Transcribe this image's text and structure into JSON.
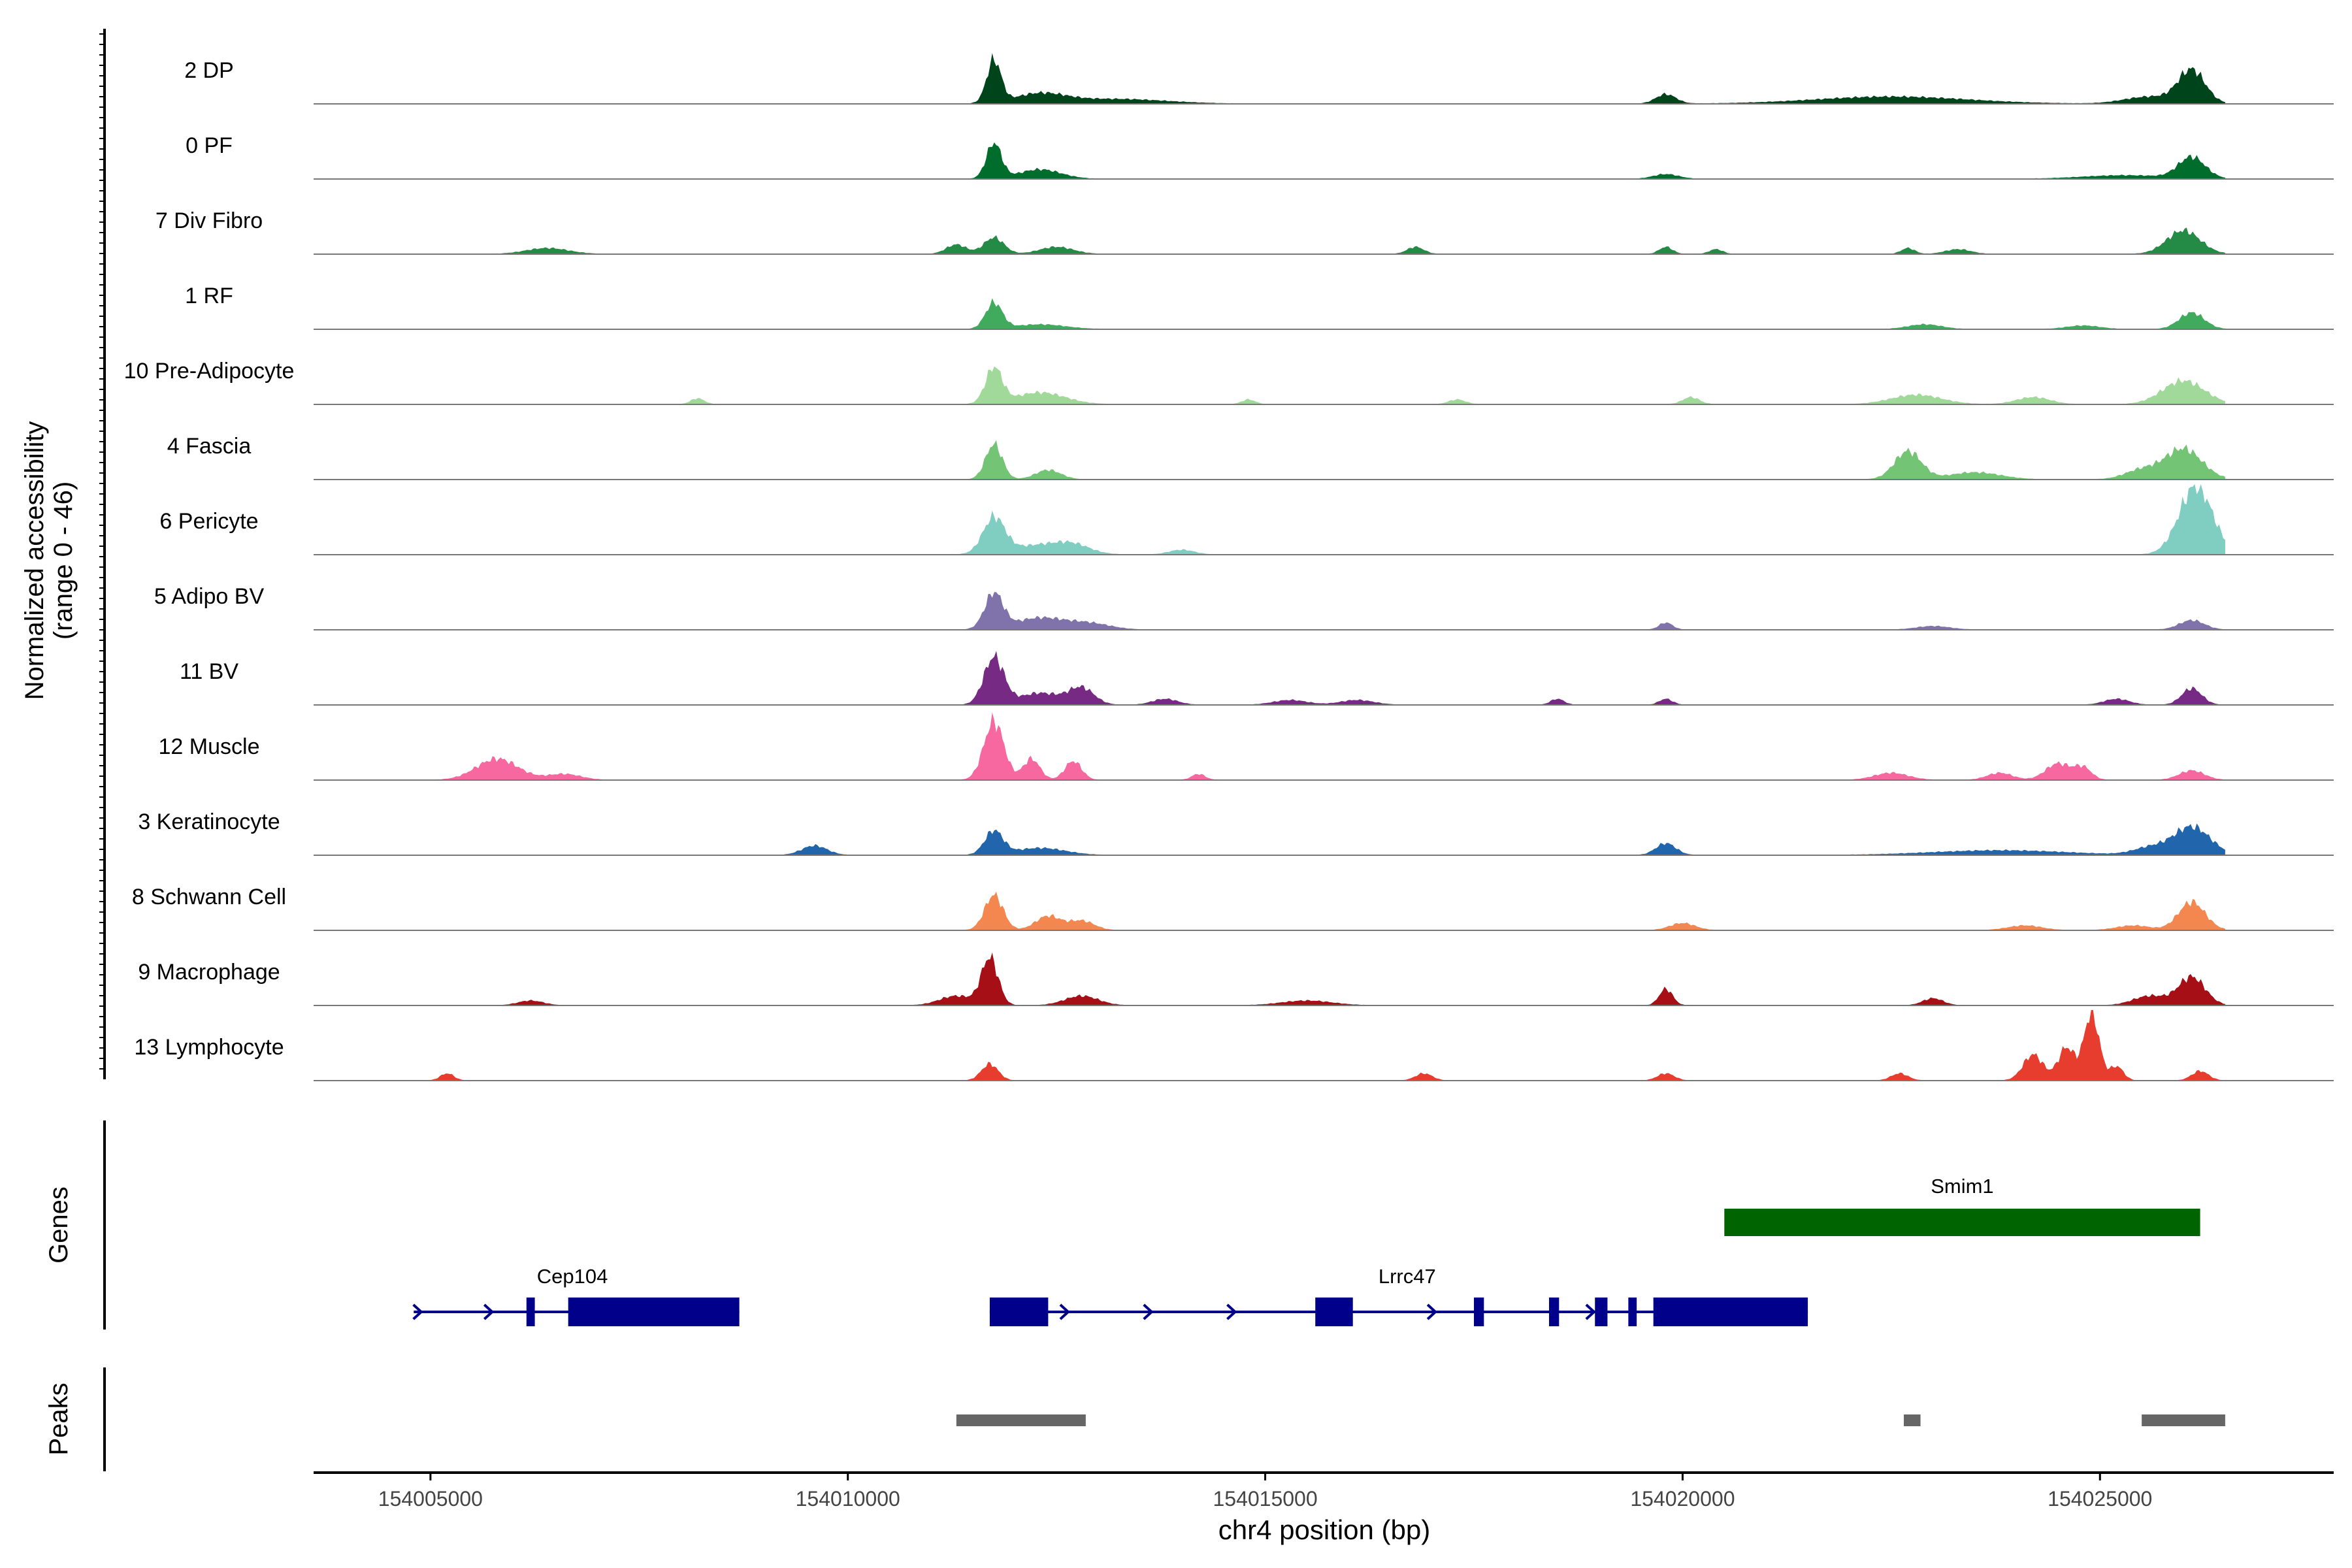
{
  "chart_data": {
    "type": "area",
    "title": "",
    "xlabel": "chr4 position (bp)",
    "ylabel_line1": "Normalized accessibility",
    "ylabel_line2": "(range 0 - 46)",
    "y_range": [
      0,
      46
    ],
    "xlim": [
      154003600,
      154027800
    ],
    "x_ticks": [
      154005000,
      154010000,
      154015000,
      154020000,
      154025000
    ],
    "x_tick_labels": [
      "154005000",
      "154010000",
      "154015000",
      "154020000",
      "154025000"
    ],
    "data_xlim": [
      154004600,
      154026500
    ],
    "tracks": [
      {
        "name": "2 DP",
        "color": "#00441B",
        "peaks": [
          [
            154011750,
            36,
            85
          ],
          [
            154012300,
            8,
            300
          ],
          [
            154013200,
            4,
            600
          ],
          [
            154019800,
            8,
            120
          ],
          [
            154022500,
            6,
            900
          ],
          [
            154026100,
            28,
            160
          ],
          [
            154025600,
            6,
            300
          ]
        ]
      },
      {
        "name": "0 PF",
        "color": "#006D2C",
        "peaks": [
          [
            154011750,
            30,
            90
          ],
          [
            154012300,
            8,
            250
          ],
          [
            154019800,
            4,
            150
          ],
          [
            154026100,
            18,
            160
          ],
          [
            154025300,
            3,
            500
          ]
        ]
      },
      {
        "name": "7 Div Fibro",
        "color": "#238B45",
        "peaks": [
          [
            154006400,
            5,
            250
          ],
          [
            154011300,
            8,
            120
          ],
          [
            154011750,
            14,
            120
          ],
          [
            154012500,
            6,
            200
          ],
          [
            154016800,
            6,
            100
          ],
          [
            154019800,
            6,
            80
          ],
          [
            154020400,
            4,
            80
          ],
          [
            154022700,
            5,
            80
          ],
          [
            154023300,
            4,
            150
          ],
          [
            154026000,
            20,
            200
          ]
        ]
      },
      {
        "name": "1 RF",
        "color": "#41AB5D",
        "peaks": [
          [
            154011750,
            22,
            100
          ],
          [
            154012300,
            4,
            300
          ],
          [
            154022900,
            4,
            200
          ],
          [
            154024800,
            3,
            200
          ],
          [
            154026100,
            14,
            150
          ]
        ]
      },
      {
        "name": "10 Pre-Adipocyte",
        "color": "#A1D99B",
        "peaks": [
          [
            154011750,
            30,
            100
          ],
          [
            154012300,
            10,
            300
          ],
          [
            154008200,
            5,
            80
          ],
          [
            154014800,
            4,
            80
          ],
          [
            154017300,
            4,
            100
          ],
          [
            154020100,
            6,
            100
          ],
          [
            154022800,
            8,
            300
          ],
          [
            154024200,
            6,
            200
          ],
          [
            154026000,
            20,
            250
          ]
        ]
      },
      {
        "name": "4 Fascia",
        "color": "#74C476",
        "peaks": [
          [
            154011750,
            30,
            100
          ],
          [
            154012400,
            8,
            150
          ],
          [
            154022700,
            24,
            160
          ],
          [
            154023500,
            6,
            300
          ],
          [
            154026000,
            26,
            220
          ],
          [
            154025500,
            8,
            200
          ]
        ]
      },
      {
        "name": "6 Pericyte",
        "color": "#80CDC1",
        "peaks": [
          [
            154011750,
            30,
            130
          ],
          [
            154012300,
            8,
            350
          ],
          [
            154012700,
            6,
            200
          ],
          [
            154014000,
            4,
            150
          ],
          [
            154026150,
            58,
            200
          ]
        ]
      },
      {
        "name": "5 Adipo BV",
        "color": "#8073AC",
        "peaks": [
          [
            154011750,
            30,
            110
          ],
          [
            154012300,
            10,
            300
          ],
          [
            154012900,
            5,
            250
          ],
          [
            154019800,
            6,
            80
          ],
          [
            154023000,
            3,
            200
          ],
          [
            154026100,
            8,
            150
          ]
        ]
      },
      {
        "name": "11 BV",
        "color": "#762A83",
        "peaks": [
          [
            154011750,
            40,
            120
          ],
          [
            154012300,
            10,
            250
          ],
          [
            154012800,
            14,
            150
          ],
          [
            154013800,
            5,
            150
          ],
          [
            154015300,
            4,
            200
          ],
          [
            154016100,
            4,
            200
          ],
          [
            154018500,
            5,
            80
          ],
          [
            154019800,
            5,
            80
          ],
          [
            154025200,
            5,
            150
          ],
          [
            154026100,
            14,
            120
          ]
        ]
      },
      {
        "name": "12 Muscle",
        "color": "#F768A1",
        "peaks": [
          [
            154011750,
            50,
            120
          ],
          [
            154012200,
            18,
            100
          ],
          [
            154012700,
            16,
            100
          ],
          [
            154005800,
            18,
            250
          ],
          [
            154006600,
            5,
            200
          ],
          [
            154014200,
            5,
            80
          ],
          [
            154022500,
            6,
            200
          ],
          [
            154023800,
            6,
            150
          ],
          [
            154024500,
            14,
            150
          ],
          [
            154024800,
            10,
            100
          ],
          [
            154026100,
            8,
            150
          ]
        ]
      },
      {
        "name": "3 Keratinocyte",
        "color": "#2166AC",
        "peaks": [
          [
            154011750,
            20,
            110
          ],
          [
            154012300,
            6,
            300
          ],
          [
            154009600,
            8,
            150
          ],
          [
            154019800,
            10,
            120
          ],
          [
            154023800,
            4,
            800
          ],
          [
            154026100,
            24,
            220
          ],
          [
            154025600,
            6,
            200
          ]
        ]
      },
      {
        "name": "8 Schwann Cell",
        "color": "#F4874F",
        "peaks": [
          [
            154011750,
            30,
            110
          ],
          [
            154012400,
            12,
            150
          ],
          [
            154012800,
            8,
            150
          ],
          [
            154020000,
            6,
            150
          ],
          [
            154026100,
            24,
            160
          ],
          [
            154025400,
            4,
            200
          ],
          [
            154024100,
            4,
            200
          ]
        ]
      },
      {
        "name": "9 Macrophage",
        "color": "#A50F15",
        "peaks": [
          [
            154011700,
            40,
            100
          ],
          [
            154011300,
            8,
            200
          ],
          [
            154012800,
            8,
            200
          ],
          [
            154019800,
            14,
            80
          ],
          [
            154023000,
            6,
            120
          ],
          [
            154026100,
            24,
            160
          ],
          [
            154025600,
            8,
            200
          ],
          [
            154006200,
            4,
            150
          ],
          [
            154015500,
            4,
            300
          ]
        ]
      },
      {
        "name": "13 Lymphocyte",
        "color": "#E73D2E",
        "peaks": [
          [
            154024900,
            58,
            90
          ],
          [
            154024600,
            28,
            100
          ],
          [
            154024200,
            22,
            120
          ],
          [
            154025200,
            12,
            80
          ],
          [
            154005200,
            6,
            80
          ],
          [
            154011700,
            14,
            100
          ],
          [
            154016900,
            6,
            100
          ],
          [
            154019800,
            6,
            100
          ],
          [
            154022600,
            6,
            100
          ],
          [
            154026200,
            8,
            100
          ]
        ]
      }
    ]
  },
  "genes_panel": {
    "label": "Genes",
    "genes": [
      {
        "name": "Smim1",
        "start": 154020500,
        "end": 154026200,
        "color": "#006400"
      },
      {
        "name": "Cep104",
        "start": 154004800,
        "end": 154008700,
        "color": "#00008B",
        "exons": [
          [
            154006150,
            154006250
          ],
          [
            154006650,
            154008700
          ]
        ],
        "arrows": [
          154004850,
          154005700
        ]
      },
      {
        "name": "Lrrc47",
        "start": 154011700,
        "end": 154021500,
        "color": "#00008B",
        "exons": [
          [
            154011700,
            154012400
          ],
          [
            154015600,
            154016050
          ],
          [
            154017500,
            154017620
          ],
          [
            154018400,
            154018520
          ],
          [
            154018950,
            154019100
          ],
          [
            154019350,
            154019450
          ],
          [
            154019650,
            154021500
          ]
        ],
        "arrows": [
          154012600,
          154013600,
          154014600,
          154017000,
          154018900
        ]
      }
    ]
  },
  "peaks_panel": {
    "label": "Peaks",
    "color": "#666666",
    "peaks": [
      [
        154011300,
        154012850
      ],
      [
        154022650,
        154022850
      ],
      [
        154025500,
        154026500
      ]
    ]
  }
}
